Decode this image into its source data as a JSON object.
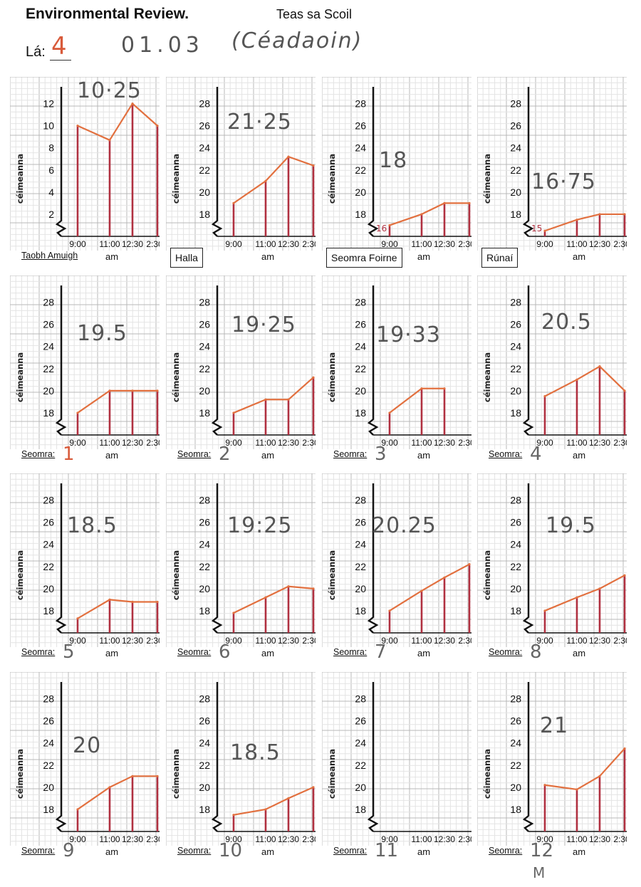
{
  "header": {
    "title": "Environmental Review.",
    "subtitle": "Teas sa Scoil",
    "day_label": "Lá:",
    "day_value": "4",
    "date": "01.03",
    "weekday": "(Céadaoin)"
  },
  "axis": {
    "y_label": "céimeanna",
    "x_unit": "am",
    "x_ticks": [
      "9:00",
      "11:00",
      "12:30",
      "2:30"
    ],
    "room_prefix": "Seomra:"
  },
  "panels": [
    {
      "label": "Taobh Amuigh",
      "label_style": "footer",
      "value": "10·25",
      "yticks": [
        "2",
        "4",
        "6",
        "8",
        "10",
        "12"
      ],
      "ymin": 0,
      "ymax": 13,
      "values": [
        10,
        8.7,
        12,
        10
      ]
    },
    {
      "label": "Halla",
      "label_style": "box",
      "value": "21·25",
      "yticks": [
        "18",
        "20",
        "22",
        "24",
        "26",
        "28"
      ],
      "ymin": 16,
      "ymax": 29,
      "values": [
        19,
        21,
        23.2,
        22.4
      ]
    },
    {
      "label": "Seomra Foirne",
      "label_style": "box",
      "value": "18",
      "yticks": [
        "18",
        "20",
        "22",
        "24",
        "26",
        "28"
      ],
      "ymin": 16,
      "ymax": 29,
      "values": [
        17,
        18,
        19,
        19
      ],
      "start_note": "16"
    },
    {
      "label": "Rúnaí",
      "label_style": "box",
      "value": "16·75",
      "yticks": [
        "18",
        "20",
        "22",
        "24",
        "26",
        "28"
      ],
      "ymin": 16,
      "ymax": 29,
      "values": [
        16.5,
        17.5,
        18,
        18
      ],
      "start_note": "15"
    },
    {
      "label": "1",
      "label_style": "room",
      "value": "19.5",
      "yticks": [
        "18",
        "20",
        "22",
        "24",
        "26",
        "28"
      ],
      "ymin": 16,
      "ymax": 29,
      "values": [
        18,
        20,
        20,
        20
      ]
    },
    {
      "label": "2",
      "label_style": "room",
      "value": "19·25",
      "yticks": [
        "18",
        "20",
        "22",
        "24",
        "26",
        "28"
      ],
      "ymin": 16,
      "ymax": 29,
      "values": [
        18,
        19.2,
        19.2,
        21.2
      ]
    },
    {
      "label": "3",
      "label_style": "room",
      "value": "19·33",
      "yticks": [
        "18",
        "20",
        "22",
        "24",
        "26",
        "28"
      ],
      "ymin": 16,
      "ymax": 29,
      "values": [
        18,
        20.2,
        20.2
      ]
    },
    {
      "label": "4",
      "label_style": "room",
      "value": "20.5",
      "yticks": [
        "18",
        "20",
        "22",
        "24",
        "26",
        "28"
      ],
      "ymin": 16,
      "ymax": 29,
      "values": [
        19.5,
        21,
        22.2,
        20
      ]
    },
    {
      "label": "5",
      "label_style": "room",
      "value": "18.5",
      "yticks": [
        "18",
        "20",
        "22",
        "24",
        "26",
        "28"
      ],
      "ymin": 16,
      "ymax": 29,
      "values": [
        17.3,
        19,
        18.8,
        18.8
      ]
    },
    {
      "label": "6",
      "label_style": "room",
      "value": "19:25",
      "yticks": [
        "18",
        "20",
        "22",
        "24",
        "26",
        "28"
      ],
      "ymin": 16,
      "ymax": 29,
      "values": [
        17.8,
        19.2,
        20.2,
        20
      ]
    },
    {
      "label": "7",
      "label_style": "room",
      "value": "20.25",
      "yticks": [
        "18",
        "20",
        "22",
        "24",
        "26",
        "28"
      ],
      "ymin": 16,
      "ymax": 29,
      "values": [
        18,
        19.8,
        21,
        22.2
      ]
    },
    {
      "label": "8",
      "label_style": "room",
      "value": "19.5",
      "yticks": [
        "18",
        "20",
        "22",
        "24",
        "26",
        "28"
      ],
      "ymin": 16,
      "ymax": 29,
      "values": [
        18,
        19.2,
        20,
        21.2
      ]
    },
    {
      "label": "9",
      "label_style": "room",
      "value": "20",
      "yticks": [
        "18",
        "20",
        "22",
        "24",
        "26",
        "28"
      ],
      "ymin": 16,
      "ymax": 29,
      "values": [
        18,
        20,
        21,
        21
      ]
    },
    {
      "label": "10",
      "label_style": "room",
      "value": "18.5",
      "yticks": [
        "18",
        "20",
        "22",
        "24",
        "26",
        "28"
      ],
      "ymin": 16,
      "ymax": 29,
      "values": [
        17.5,
        18,
        19,
        20
      ]
    },
    {
      "label": "11",
      "label_style": "room",
      "value": "",
      "yticks": [
        "18",
        "20",
        "22",
        "24",
        "26",
        "28"
      ],
      "ymin": 16,
      "ymax": 29,
      "values": []
    },
    {
      "label": "12",
      "label_style": "room",
      "value": "21",
      "yticks": [
        "18",
        "20",
        "22",
        "24",
        "26",
        "28"
      ],
      "ymin": 16,
      "ymax": 29,
      "values": [
        20.2,
        19.8,
        21,
        23.5
      ],
      "extra_note": "M"
    }
  ],
  "colors": {
    "grid_minor": "#e4e4e4",
    "grid_major": "#b9b9b9",
    "line": "#e2703f",
    "bar": "#b03040",
    "axis": "#111111"
  }
}
